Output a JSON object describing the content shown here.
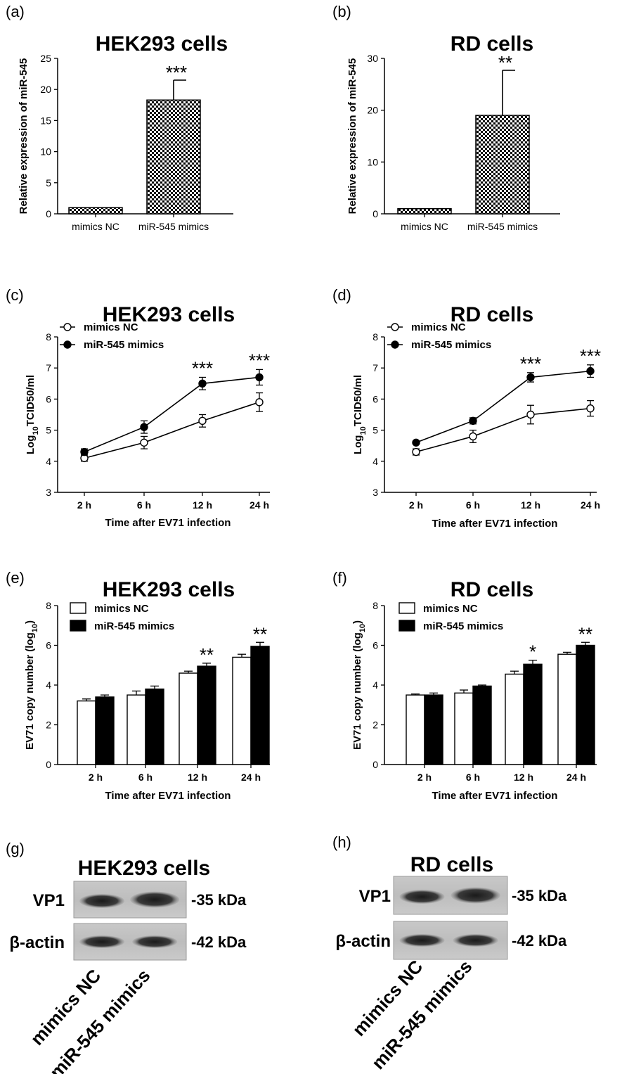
{
  "charts": [
    {
      "id": "a",
      "panel": "(a)",
      "title": "HEK293 cells",
      "type": "bar",
      "ylabel": "Relative expression of miR-545",
      "xlabel": "",
      "yticks": [
        0,
        5,
        10,
        15,
        20,
        25
      ],
      "ylim": [
        0,
        25
      ],
      "categories": [
        "mimics NC",
        "miR-545 mimics"
      ],
      "values": [
        1,
        18.3
      ],
      "errors": [
        0,
        3.2
      ],
      "sig": [
        "",
        "***"
      ]
    },
    {
      "id": "b",
      "panel": "(b)",
      "title": "RD cells",
      "type": "bar",
      "ylabel": "Relative expression of miR-545",
      "xlabel": "",
      "yticks": [
        0,
        10,
        20,
        30
      ],
      "ylim": [
        0,
        30
      ],
      "categories": [
        "mimics NC",
        "miR-545 mimics"
      ],
      "values": [
        1,
        19
      ],
      "errors": [
        0,
        8.7
      ],
      "sig": [
        "",
        "**"
      ]
    },
    {
      "id": "c",
      "panel": "(c)",
      "title": "HEK293 cells",
      "type": "line",
      "ylabel": "Log10TCID50/ml",
      "xlabel": "Time after EV71 infection",
      "yticks": [
        3,
        4,
        5,
        6,
        7,
        8
      ],
      "ylim": [
        3,
        8
      ],
      "categories": [
        "2 h",
        "6 h",
        "12 h",
        "24 h"
      ],
      "series": [
        {
          "name": "mimics NC",
          "values": [
            4.1,
            4.6,
            5.3,
            5.9
          ],
          "errors": [
            0.1,
            0.2,
            0.2,
            0.3
          ],
          "filled": false
        },
        {
          "name": "miR-545 mimics",
          "values": [
            4.3,
            5.1,
            6.5,
            6.7
          ],
          "errors": [
            0.1,
            0.2,
            0.2,
            0.25
          ],
          "filled": true
        }
      ],
      "sig": [
        "",
        "",
        "***",
        "***"
      ]
    },
    {
      "id": "d",
      "panel": "(d)",
      "title": "RD cells",
      "type": "line",
      "ylabel": "Log10TCID50/ml",
      "xlabel": "Time after EV71 infection",
      "yticks": [
        3,
        4,
        5,
        6,
        7,
        8
      ],
      "ylim": [
        3,
        8
      ],
      "categories": [
        "2 h",
        "6 h",
        "12 h",
        "24 h"
      ],
      "series": [
        {
          "name": "mimics NC",
          "values": [
            4.3,
            4.8,
            5.5,
            5.7
          ],
          "errors": [
            0.1,
            0.2,
            0.3,
            0.25
          ],
          "filled": false
        },
        {
          "name": "miR-545 mimics",
          "values": [
            4.6,
            5.3,
            6.7,
            6.9
          ],
          "errors": [
            0.05,
            0.1,
            0.15,
            0.2
          ],
          "filled": true
        }
      ],
      "sig": [
        "",
        "",
        "***",
        "***"
      ]
    },
    {
      "id": "e",
      "panel": "(e)",
      "title": "HEK293 cells",
      "type": "bar",
      "ylabel": "EV71 copy number (log10)",
      "xlabel": "Time after EV71 infection",
      "yticks": [
        0,
        2,
        4,
        6,
        8
      ],
      "ylim": [
        0,
        8
      ],
      "categories": [
        "2 h",
        "6 h",
        "12 h",
        "24 h"
      ],
      "series": [
        {
          "name": "mimics NC",
          "values": [
            3.2,
            3.5,
            4.6,
            5.4
          ],
          "errors": [
            0.1,
            0.2,
            0.1,
            0.15
          ],
          "color": "#ffffff"
        },
        {
          "name": "miR-545 mimics",
          "values": [
            3.4,
            3.8,
            4.95,
            5.95
          ],
          "errors": [
            0.1,
            0.15,
            0.15,
            0.2
          ],
          "color": "#000000"
        }
      ],
      "sig": [
        "",
        "",
        "**",
        "**"
      ]
    },
    {
      "id": "f",
      "panel": "(f)",
      "title": "RD cells",
      "type": "bar",
      "ylabel": "EV71 copy number (log10)",
      "xlabel": "Time after EV71 infection",
      "yticks": [
        0,
        2,
        4,
        6,
        8
      ],
      "ylim": [
        0,
        8
      ],
      "categories": [
        "2 h",
        "6 h",
        "12 h",
        "24 h"
      ],
      "series": [
        {
          "name": "mimics NC",
          "values": [
            3.5,
            3.6,
            4.55,
            5.55
          ],
          "errors": [
            0.05,
            0.15,
            0.15,
            0.1
          ],
          "color": "#ffffff"
        },
        {
          "name": "miR-545 mimics",
          "values": [
            3.5,
            3.95,
            5.05,
            6.0
          ],
          "errors": [
            0.1,
            0.05,
            0.2,
            0.15
          ],
          "color": "#000000"
        }
      ],
      "sig": [
        "",
        "",
        "*",
        "**"
      ]
    }
  ],
  "blots": [
    {
      "id": "g",
      "panel": "(g)",
      "title": "HEK293 cells",
      "rows": [
        "VP1",
        "β-actin"
      ],
      "sizes": [
        "-35 kDa",
        "-42 kDa"
      ],
      "lanes": [
        "mimics NC",
        "miR-545 mimics"
      ]
    },
    {
      "id": "h",
      "panel": "(h)",
      "title": "RD cells",
      "rows": [
        "VP1",
        "β-actin"
      ],
      "sizes": [
        "-35 kDa",
        "-42 kDa"
      ],
      "lanes": [
        "mimics NC",
        "miR-545 mimics"
      ]
    }
  ]
}
